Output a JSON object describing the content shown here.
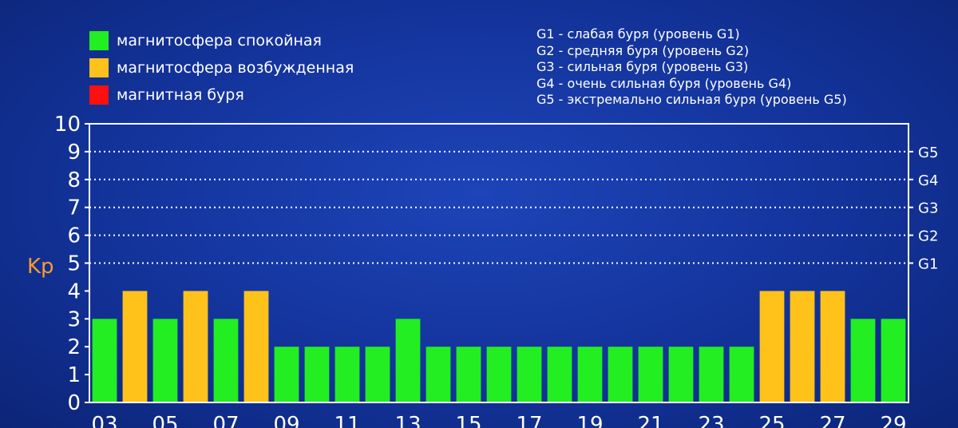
{
  "legend": [
    {
      "label": "магнитосфера спокойная",
      "color": "#22ee22"
    },
    {
      "label": "магнитосфера возбужденная",
      "color": "#ffc21a"
    },
    {
      "label": "магнитная буря",
      "color": "#ff1010"
    }
  ],
  "levels": [
    "G1 - слабая буря (уровень G1)",
    "G2 - средняя буря (уровень G2)",
    "G3 - сильная буря (уровень G3)",
    "G4 - очень сильная буря (уровень G4)",
    "G5 - экстремально сильная буря (уровень G5)"
  ],
  "colors": {
    "quiet": "#22ee22",
    "active": "#ffc21a",
    "storm": "#ff1010",
    "axis_label": "#ff9a2e",
    "grid": "#ffffff"
  },
  "chart_data": {
    "type": "bar",
    "title": "",
    "ylabel": "Kp",
    "xlabel": "",
    "ylim": [
      0,
      10
    ],
    "yticks": [
      0,
      1,
      2,
      3,
      4,
      5,
      6,
      7,
      8,
      9,
      10
    ],
    "right_ticks": [
      {
        "value": 5,
        "label": "G1"
      },
      {
        "value": 6,
        "label": "G2"
      },
      {
        "value": 7,
        "label": "G3"
      },
      {
        "value": 8,
        "label": "G4"
      },
      {
        "value": 9,
        "label": "G5"
      }
    ],
    "categories": [
      "03",
      "04",
      "05",
      "06",
      "07",
      "08",
      "09",
      "10",
      "11",
      "12",
      "13",
      "14",
      "15",
      "16",
      "17",
      "18",
      "19",
      "20",
      "21",
      "22",
      "23",
      "24",
      "25",
      "26",
      "27",
      "28",
      "29"
    ],
    "xtick_labels": [
      "03",
      "05",
      "07",
      "09",
      "11",
      "13",
      "15",
      "17",
      "19",
      "21",
      "23",
      "25",
      "27",
      "29"
    ],
    "values": [
      3,
      4,
      3,
      4,
      3,
      4,
      2,
      2,
      2,
      2,
      3,
      2,
      2,
      2,
      2,
      2,
      2,
      2,
      2,
      2,
      2,
      2,
      4,
      4,
      4,
      3,
      3
    ],
    "status": [
      "quiet",
      "active",
      "quiet",
      "active",
      "quiet",
      "active",
      "quiet",
      "quiet",
      "quiet",
      "quiet",
      "quiet",
      "quiet",
      "quiet",
      "quiet",
      "quiet",
      "quiet",
      "quiet",
      "quiet",
      "quiet",
      "quiet",
      "quiet",
      "quiet",
      "active",
      "active",
      "active",
      "quiet",
      "quiet"
    ],
    "grid": "dotted horizontal lines at 5–9"
  }
}
